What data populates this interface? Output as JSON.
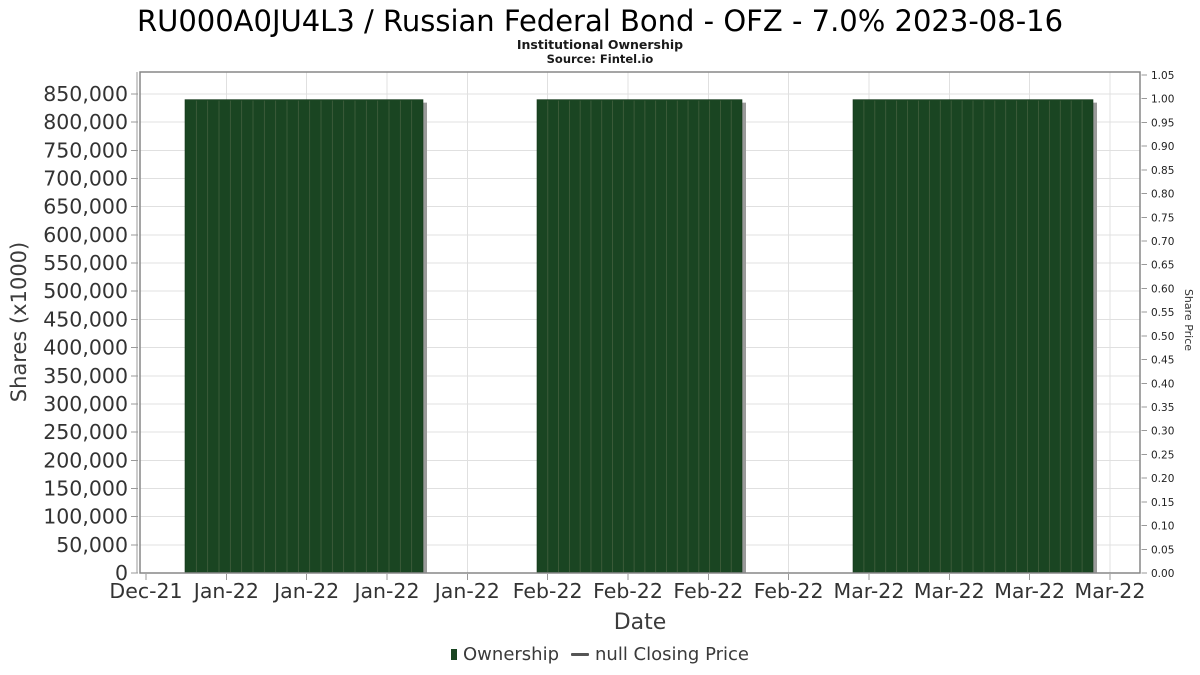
{
  "chart_data": {
    "type": "bar",
    "title": "RU000A0JU4L3 / Russian Federal Bond - OFZ - 7.0% 2023-08-16",
    "subtitle": "Institutional Ownership",
    "source_note": "Source: Fintel.io",
    "xlabel": "Date",
    "ylabel_left": "Shares (x1000)",
    "ylabel_right": "Share Price",
    "x_tick_labels": [
      "Dec-21",
      "Jan-22",
      "Jan-22",
      "Jan-22",
      "Jan-22",
      "Feb-22",
      "Feb-22",
      "Feb-22",
      "Feb-22",
      "Mar-22",
      "Mar-22",
      "Mar-22",
      "Mar-22"
    ],
    "y_left_axis": {
      "min": 0,
      "tick_max": 850000,
      "tick_step": 50000,
      "unit": "shares x1000"
    },
    "y_right_axis": {
      "min": 0.0,
      "max": 1.05,
      "tick_step": 0.05
    },
    "grid": true,
    "legend_position": "bottom",
    "series": [
      {
        "name": "Ownership",
        "type": "bar",
        "color": "#1a4522",
        "bar_groups": [
          {
            "period": "Jan-22",
            "bars": 21,
            "value": 840000,
            "x_frac": [
              0.045,
              0.283
            ]
          },
          {
            "period": "Feb-22",
            "bars": 19,
            "value": 840000,
            "x_frac": [
              0.397,
              0.602
            ]
          },
          {
            "period": "Mar-22",
            "bars": 22,
            "value": 840000,
            "x_frac": [
              0.713,
              0.953
            ]
          }
        ]
      },
      {
        "name": "null Closing Price",
        "type": "line",
        "color": "#555555",
        "values": []
      }
    ],
    "colors": {
      "bar": "#1a4522",
      "bar_separator": "#44603f",
      "bar_edge": "#123618",
      "bar_shadow": "#9a9a9a",
      "grid": "#e0e0e0",
      "plot_border": "#878787",
      "axis_line": "#999999",
      "axis_tick": "#999999",
      "tick_label": "#333333",
      "right_tick_label": "#222222",
      "axis_title": "#3c3c3c"
    }
  }
}
